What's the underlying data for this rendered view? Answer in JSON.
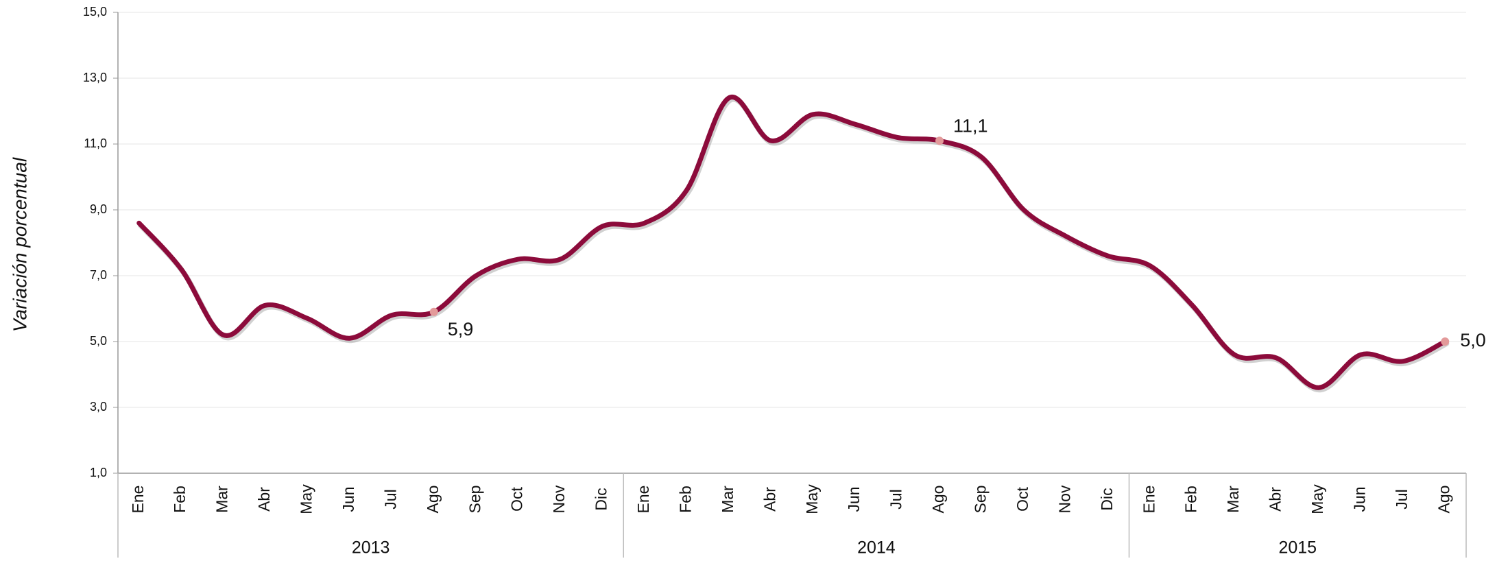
{
  "chart_data": {
    "type": "line",
    "y_label": "Variación porcentual",
    "groups": [
      {
        "label": "2013",
        "categories": [
          "Ene",
          "Feb",
          "Mar",
          "Abr",
          "May",
          "Jun",
          "Jul",
          "Ago",
          "Sep",
          "Oct",
          "Nov",
          "Dic"
        ]
      },
      {
        "label": "2014",
        "categories": [
          "Ene",
          "Feb",
          "Mar",
          "Abr",
          "May",
          "Jun",
          "Jul",
          "Ago",
          "Sep",
          "Oct",
          "Nov",
          "Dic"
        ]
      },
      {
        "label": "2015",
        "categories": [
          "Ene",
          "Feb",
          "Mar",
          "Abr",
          "May",
          "Jun",
          "Jul",
          "Ago"
        ]
      }
    ],
    "values": [
      8.6,
      7.2,
      5.2,
      6.1,
      5.7,
      5.1,
      5.8,
      5.9,
      7.0,
      7.5,
      7.5,
      8.5,
      8.6,
      9.6,
      12.4,
      11.1,
      11.9,
      11.6,
      11.2,
      11.1,
      10.6,
      9.0,
      8.2,
      7.6,
      7.3,
      6.1,
      4.6,
      4.5,
      3.6,
      4.6,
      4.4,
      5.0
    ],
    "value_labels": [
      null,
      null,
      null,
      null,
      null,
      null,
      null,
      "5,9",
      null,
      null,
      null,
      null,
      null,
      null,
      null,
      null,
      null,
      null,
      null,
      "11,1",
      null,
      null,
      null,
      null,
      null,
      null,
      null,
      null,
      null,
      null,
      null,
      "5,0"
    ],
    "color": "#8c0b3b",
    "marker_color": "#e39a9a",
    "ylim": [
      1,
      15
    ],
    "yticks": [
      {
        "value": 1,
        "label": "1,0"
      },
      {
        "value": 3,
        "label": "3,0"
      },
      {
        "value": 5,
        "label": "5,0"
      },
      {
        "value": 7,
        "label": "7,0"
      },
      {
        "value": 9,
        "label": "9,0"
      },
      {
        "value": 11,
        "label": "11,0"
      },
      {
        "value": 13,
        "label": "13,0"
      },
      {
        "value": 15,
        "label": "15,0"
      }
    ],
    "grid": true
  }
}
